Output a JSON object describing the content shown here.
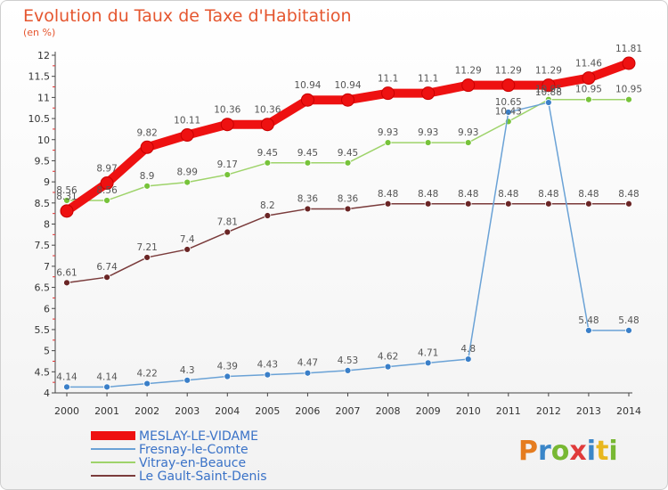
{
  "title": "Evolution du Taux de Taxe d'Habitation",
  "subtitle": "(en %)",
  "logo": "Proxiti",
  "chart_data": {
    "type": "line",
    "title": "Evolution du Taux de Taxe d'Habitation",
    "subtitle": "(en %)",
    "xlabel": "",
    "ylabel": "",
    "x": [
      2000,
      2001,
      2002,
      2003,
      2004,
      2005,
      2006,
      2007,
      2008,
      2009,
      2010,
      2011,
      2012,
      2013,
      2014
    ],
    "ylim": [
      4,
      12
    ],
    "yticks": [
      4,
      4.5,
      5,
      5.5,
      6,
      6.5,
      7,
      7.5,
      8,
      8.5,
      9,
      9.5,
      10,
      10.5,
      11,
      11.5,
      12
    ],
    "grid": false,
    "legend_position": "bottom-left",
    "series": [
      {
        "name": "MESLAY-LE-VIDAME",
        "color": "#ee1111",
        "thick": true,
        "values": [
          8.31,
          8.97,
          9.82,
          10.11,
          10.36,
          10.36,
          10.94,
          10.94,
          11.1,
          11.1,
          11.29,
          11.29,
          11.29,
          11.46,
          11.81
        ]
      },
      {
        "name": "Fresnay-le-Comte",
        "color": "#6aa2d6",
        "point": "#3a7fc8",
        "thick": false,
        "values": [
          4.14,
          4.14,
          4.22,
          4.3,
          4.39,
          4.43,
          4.47,
          4.53,
          4.62,
          4.71,
          4.8,
          10.65,
          10.88,
          5.48,
          5.48
        ]
      },
      {
        "name": "Vitray-en-Beauce",
        "color": "#9ed36a",
        "point": "#77c33a",
        "thick": false,
        "values": [
          8.56,
          8.56,
          8.9,
          8.99,
          9.17,
          9.45,
          9.45,
          9.45,
          9.93,
          9.93,
          9.93,
          10.43,
          10.95,
          10.95,
          10.95
        ]
      },
      {
        "name": "Le Gault-Saint-Denis",
        "color": "#7a3b3b",
        "point": "#6a2525",
        "thick": false,
        "values": [
          6.61,
          6.74,
          7.21,
          7.4,
          7.81,
          8.2,
          8.36,
          8.36,
          8.48,
          8.48,
          8.48,
          8.48,
          8.48,
          8.48,
          8.48
        ]
      }
    ],
    "data_labels": [
      [
        "8.31",
        "8.97",
        "9.82",
        "10.11",
        "10.36",
        "10.36",
        "10.94",
        "10.94",
        "11.1",
        "11.1",
        "11.29",
        "11.29",
        "11.29",
        "11.46",
        "11.81"
      ],
      [
        "4.14",
        "4.14",
        "4.22",
        "4.3",
        "4.39",
        "4.43",
        "4.47",
        "4.53",
        "4.62",
        "4.71",
        "4.8",
        "10.65",
        "10.88",
        "5.48",
        "5.48"
      ],
      [
        "8.56",
        "8.56",
        "8.9",
        "8.99",
        "9.17",
        "9.45",
        "9.45",
        "9.45",
        "9.93",
        "9.93",
        "9.93",
        "10.43",
        "10.95",
        "10.95",
        "10.95"
      ],
      [
        "6.61",
        "6.74",
        "7.21",
        "7.4",
        "7.81",
        "8.2",
        "8.36",
        "8.36",
        "8.48",
        "8.48",
        "8.48",
        "8.48",
        "8.48",
        "8.48",
        "8.48"
      ]
    ]
  }
}
